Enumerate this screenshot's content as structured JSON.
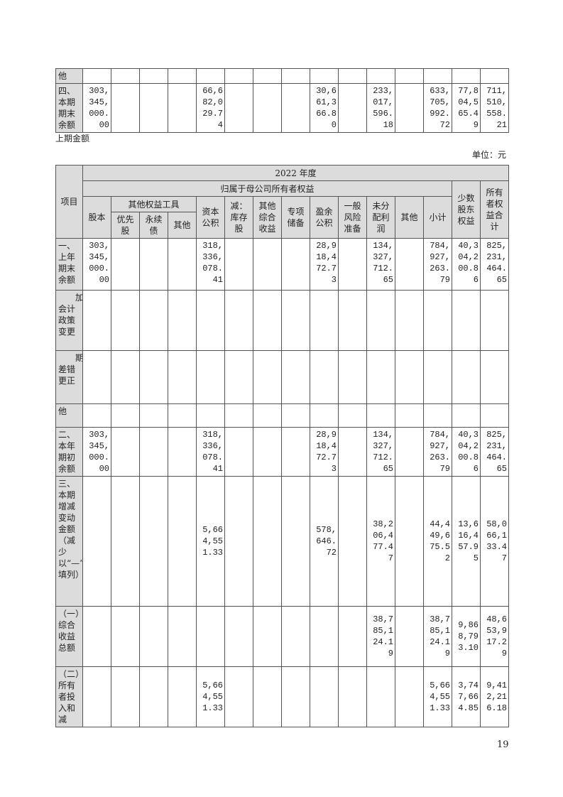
{
  "top_table": {
    "rows": [
      {
        "label": "他",
        "values": [
          "",
          "",
          "",
          "",
          "",
          "",
          "",
          "",
          "",
          "",
          "",
          "",
          "",
          "",
          ""
        ]
      },
      {
        "label": "四、本期期末余额",
        "values": [
          "303,345,000.00",
          "",
          "",
          "",
          "66,682,029.74",
          "",
          "",
          "",
          "30,661,366.80",
          "",
          "233,017,596.18",
          "",
          "633,705,992.72",
          "77,804,565.49",
          "711,510,558.21"
        ]
      }
    ]
  },
  "section_title": "上期金额",
  "unit_label": "单位：元",
  "table": {
    "header": {
      "item": "项目",
      "year": "2022 年度",
      "parent_equity": "归属于母公司所有者权益",
      "share_capital": "股本",
      "other_equity_tools": "其他权益工具",
      "preferred": "优先股",
      "perpetual": "永续债",
      "other_tool": "其他",
      "capital_reserve": "资本公积",
      "treasury": "减：库存股",
      "oci": "其他综合收益",
      "special_reserve": "专项储备",
      "surplus": "盈余公积",
      "risk_reserve": "一般风险准备",
      "undistributed": "未分配利润",
      "other": "其他",
      "subtotal": "小计",
      "minority": "少数股东权益",
      "total": "所有者权益合计"
    },
    "rows": [
      {
        "label": "一、上年期末余额",
        "values": [
          "303,345,000.00",
          "",
          "",
          "",
          "318,336,078.41",
          "",
          "",
          "",
          "28,918,472.73",
          "",
          "134,327,712.65",
          "",
          "784,927,263.79",
          "40,304,200.86",
          "825,231,464.65"
        ]
      },
      {
        "label": "加：会计政策变更",
        "indent": true,
        "values": [
          "",
          "",
          "",
          "",
          "",
          "",
          "",
          "",
          "",
          "",
          "",
          "",
          "",
          "",
          ""
        ]
      },
      {
        "label": "期差错更正",
        "indent": true,
        "values": [
          "",
          "",
          "",
          "",
          "",
          "",
          "",
          "",
          "",
          "",
          "",
          "",
          "",
          "",
          ""
        ]
      },
      {
        "label": "他",
        "values": [
          "",
          "",
          "",
          "",
          "",
          "",
          "",
          "",
          "",
          "",
          "",
          "",
          "",
          "",
          ""
        ]
      },
      {
        "label": "二、本年期初余额",
        "values": [
          "303,345,000.00",
          "",
          "",
          "",
          "318,336,078.41",
          "",
          "",
          "",
          "28,918,472.73",
          "",
          "134,327,712.65",
          "",
          "784,927,263.79",
          "40,304,200.86",
          "825,231,464.65"
        ]
      },
      {
        "label": "三、本期增减变动金额（减少以“—”号填列）",
        "middle": true,
        "values": [
          "",
          "",
          "",
          "",
          "5,664,551.33",
          "",
          "",
          "",
          "578,646.72",
          "",
          "38,206,477.47",
          "",
          "44,449,675.52",
          "13,616,457.95",
          "58,066,133.47"
        ]
      },
      {
        "label": "（一）综合收益总额",
        "middle": true,
        "values": [
          "",
          "",
          "",
          "",
          "",
          "",
          "",
          "",
          "",
          "",
          "38,785,124.19",
          "",
          "38,785,124.19",
          "9,868,793.10",
          "48,653,917.29"
        ]
      },
      {
        "label": "（二）所有者投入和减",
        "middle": true,
        "values": [
          "",
          "",
          "",
          "",
          "5,664,551.33",
          "",
          "",
          "",
          "",
          "",
          "",
          "",
          "5,664,551.33",
          "3,747,664.85",
          "9,412,216.18"
        ]
      }
    ]
  },
  "page_number": "19"
}
